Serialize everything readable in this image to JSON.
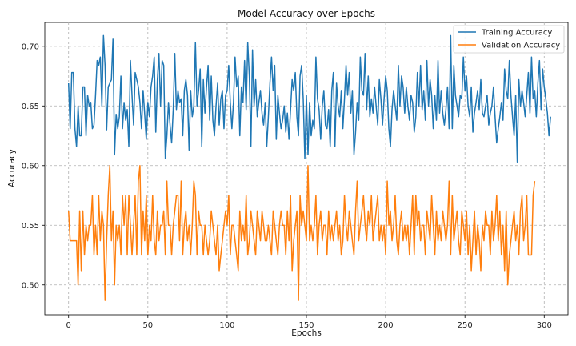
{
  "chart_data": {
    "type": "line",
    "title": "Model Accuracy over Epochs",
    "xlabel": "Epochs",
    "ylabel": "Accuracy",
    "xlim": [
      -15,
      315
    ],
    "ylim": [
      0.475,
      0.72
    ],
    "xticks": [
      0,
      50,
      100,
      150,
      200,
      250,
      300
    ],
    "yticks": [
      0.5,
      0.55,
      0.6,
      0.65,
      0.7
    ],
    "grid": true,
    "legend_position": "top-right",
    "series": [
      {
        "name": "Training Accuracy",
        "color": "#1f77b4",
        "values": [
          0.669,
          0.631,
          0.678,
          0.678,
          0.631,
          0.616,
          0.65,
          0.625,
          0.625,
          0.666,
          0.666,
          0.625,
          0.659,
          0.65,
          0.653,
          0.631,
          0.634,
          0.659,
          0.688,
          0.684,
          0.691,
          0.65,
          0.709,
          0.684,
          0.63,
          0.666,
          0.669,
          0.672,
          0.706,
          0.609,
          0.643,
          0.631,
          0.641,
          0.675,
          0.631,
          0.653,
          0.638,
          0.647,
          0.616,
          0.688,
          0.659,
          0.634,
          0.678,
          0.672,
          0.666,
          0.653,
          0.631,
          0.663,
          0.643,
          0.622,
          0.653,
          0.641,
          0.666,
          0.675,
          0.691,
          0.628,
          0.672,
          0.694,
          0.65,
          0.688,
          0.684,
          0.606,
          0.625,
          0.653,
          0.634,
          0.619,
          0.647,
          0.694,
          0.647,
          0.663,
          0.653,
          0.656,
          0.625,
          0.663,
          0.672,
          0.659,
          0.613,
          0.663,
          0.641,
          0.65,
          0.703,
          0.65,
          0.663,
          0.681,
          0.616,
          0.672,
          0.644,
          0.666,
          0.684,
          0.638,
          0.675,
          0.638,
          0.625,
          0.65,
          0.669,
          0.634,
          0.656,
          0.663,
          0.631,
          0.659,
          0.663,
          0.684,
          0.653,
          0.631,
          0.653,
          0.691,
          0.666,
          0.675,
          0.625,
          0.666,
          0.653,
          0.688,
          0.647,
          0.703,
          0.675,
          0.616,
          0.697,
          0.65,
          0.672,
          0.641,
          0.653,
          0.663,
          0.644,
          0.634,
          0.653,
          0.616,
          0.641,
          0.669,
          0.691,
          0.663,
          0.684,
          0.622,
          0.659,
          0.644,
          0.631,
          0.638,
          0.65,
          0.628,
          0.644,
          0.622,
          0.647,
          0.672,
          0.663,
          0.678,
          0.641,
          0.625,
          0.675,
          0.684,
          0.656,
          0.606,
          0.659,
          0.609,
          0.653,
          0.625,
          0.638,
          0.631,
          0.691,
          0.656,
          0.647,
          0.622,
          0.65,
          0.663,
          0.634,
          0.631,
          0.647,
          0.616,
          0.663,
          0.678,
          0.616,
          0.669,
          0.65,
          0.641,
          0.663,
          0.631,
          0.656,
          0.684,
          0.659,
          0.678,
          0.644,
          0.663,
          0.609,
          0.628,
          0.653,
          0.638,
          0.691,
          0.663,
          0.659,
          0.694,
          0.647,
          0.675,
          0.641,
          0.656,
          0.644,
          0.666,
          0.65,
          0.634,
          0.672,
          0.656,
          0.634,
          0.656,
          0.675,
          0.663,
          0.631,
          0.616,
          0.647,
          0.663,
          0.65,
          0.638,
          0.684,
          0.65,
          0.675,
          0.666,
          0.644,
          0.666,
          0.65,
          0.638,
          0.659,
          0.653,
          0.628,
          0.641,
          0.678,
          0.65,
          0.684,
          0.647,
          0.663,
          0.638,
          0.688,
          0.65,
          0.672,
          0.659,
          0.631,
          0.659,
          0.638,
          0.688,
          0.644,
          0.663,
          0.644,
          0.634,
          0.647,
          0.666,
          0.631,
          0.709,
          0.631,
          0.684,
          0.659,
          0.65,
          0.641,
          0.659,
          0.656,
          0.691,
          0.663,
          0.675,
          0.65,
          0.641,
          0.666,
          0.628,
          0.644,
          0.653,
          0.663,
          0.647,
          0.672,
          0.644,
          0.641,
          0.65,
          0.659,
          0.634,
          0.644,
          0.65,
          0.666,
          0.641,
          0.619,
          0.631,
          0.641,
          0.653,
          0.638,
          0.681,
          0.663,
          0.656,
          0.688,
          0.659,
          0.641,
          0.625,
          0.659,
          0.603,
          0.672,
          0.65,
          0.663,
          0.653,
          0.641,
          0.659,
          0.678,
          0.644,
          0.691,
          0.656,
          0.663,
          0.641,
          0.669,
          0.688,
          0.647,
          0.681,
          0.666,
          0.656,
          0.644,
          0.625,
          0.641
        ]
      },
      {
        "name": "Validation Accuracy",
        "color": "#ff7f0e",
        "values": [
          0.562,
          0.537,
          0.537,
          0.537,
          0.537,
          0.537,
          0.5,
          0.562,
          0.512,
          0.562,
          0.525,
          0.55,
          0.537,
          0.55,
          0.55,
          0.575,
          0.525,
          0.55,
          0.525,
          0.575,
          0.537,
          0.562,
          0.55,
          0.487,
          0.537,
          0.575,
          0.6,
          0.537,
          0.562,
          0.5,
          0.55,
          0.537,
          0.55,
          0.525,
          0.575,
          0.55,
          0.575,
          0.525,
          0.575,
          0.55,
          0.525,
          0.55,
          0.575,
          0.525,
          0.587,
          0.6,
          0.525,
          0.562,
          0.537,
          0.575,
          0.525,
          0.55,
          0.537,
          0.575,
          0.537,
          0.525,
          0.562,
          0.537,
          0.55,
          0.55,
          0.562,
          0.525,
          0.587,
          0.55,
          0.55,
          0.525,
          0.55,
          0.562,
          0.575,
          0.575,
          0.537,
          0.587,
          0.525,
          0.55,
          0.562,
          0.537,
          0.55,
          0.525,
          0.55,
          0.587,
          0.575,
          0.525,
          0.562,
          0.55,
          0.55,
          0.525,
          0.55,
          0.537,
          0.525,
          0.537,
          0.562,
          0.55,
          0.537,
          0.525,
          0.55,
          0.512,
          0.525,
          0.537,
          0.55,
          0.562,
          0.55,
          0.575,
          0.525,
          0.55,
          0.55,
          0.537,
          0.525,
          0.512,
          0.562,
          0.537,
          0.55,
          0.537,
          0.575,
          0.525,
          0.537,
          0.562,
          0.55,
          0.537,
          0.525,
          0.562,
          0.55,
          0.537,
          0.562,
          0.55,
          0.537,
          0.537,
          0.55,
          0.537,
          0.525,
          0.562,
          0.55,
          0.537,
          0.525,
          0.55,
          0.562,
          0.55,
          0.55,
          0.525,
          0.562,
          0.537,
          0.575,
          0.512,
          0.537,
          0.55,
          0.562,
          0.487,
          0.575,
          0.55,
          0.562,
          0.55,
          0.537,
          0.6,
          0.537,
          0.55,
          0.537,
          0.55,
          0.575,
          0.525,
          0.55,
          0.562,
          0.537,
          0.55,
          0.55,
          0.525,
          0.562,
          0.537,
          0.55,
          0.537,
          0.55,
          0.562,
          0.537,
          0.55,
          0.525,
          0.537,
          0.575,
          0.55,
          0.537,
          0.562,
          0.55,
          0.537,
          0.525,
          0.562,
          0.587,
          0.537,
          0.55,
          0.562,
          0.575,
          0.55,
          0.537,
          0.562,
          0.55,
          0.575,
          0.537,
          0.55,
          0.562,
          0.575,
          0.537,
          0.55,
          0.537,
          0.55,
          0.525,
          0.587,
          0.55,
          0.562,
          0.537,
          0.55,
          0.575,
          0.537,
          0.525,
          0.55,
          0.562,
          0.537,
          0.55,
          0.537,
          0.55,
          0.525,
          0.55,
          0.575,
          0.525,
          0.575,
          0.55,
          0.562,
          0.537,
          0.55,
          0.55,
          0.525,
          0.562,
          0.55,
          0.537,
          0.575,
          0.55,
          0.525,
          0.562,
          0.537,
          0.55,
          0.537,
          0.562,
          0.55,
          0.537,
          0.55,
          0.587,
          0.525,
          0.575,
          0.537,
          0.55,
          0.562,
          0.537,
          0.525,
          0.562,
          0.55,
          0.537,
          0.562,
          0.525,
          0.55,
          0.512,
          0.537,
          0.562,
          0.525,
          0.55,
          0.537,
          0.512,
          0.55,
          0.537,
          0.562,
          0.55,
          0.55,
          0.525,
          0.562,
          0.537,
          0.55,
          0.575,
          0.537,
          0.562,
          0.525,
          0.55,
          0.512,
          0.562,
          0.5,
          0.525,
          0.537,
          0.55,
          0.562,
          0.537,
          0.55,
          0.525,
          0.562,
          0.575,
          0.537,
          0.55,
          0.575,
          0.525,
          0.525,
          0.525,
          0.575,
          0.587
        ]
      }
    ]
  }
}
